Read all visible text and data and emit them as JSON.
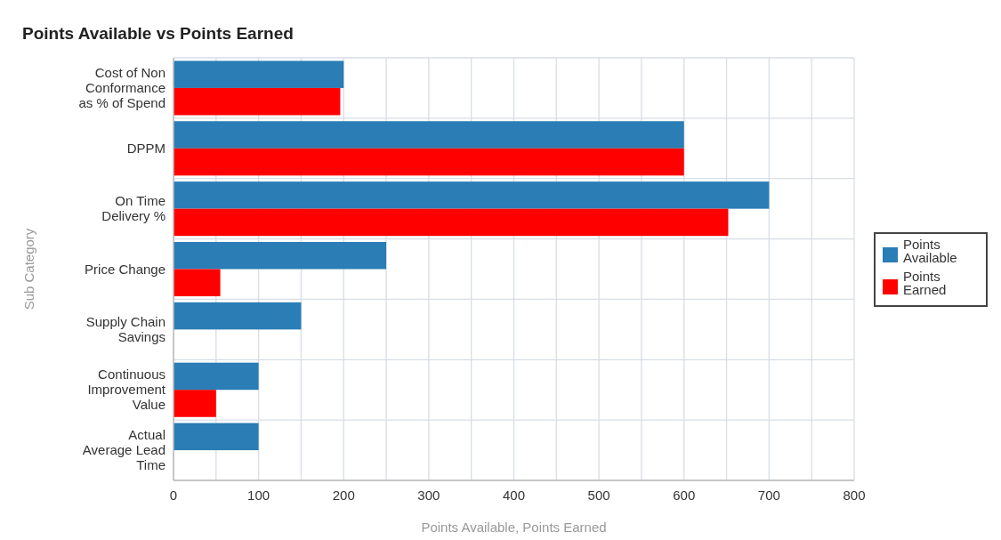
{
  "chart_data": {
    "type": "bar",
    "orientation": "horizontal",
    "title": "Points Available vs Points Earned",
    "xlabel": "Points Available, Points Earned",
    "ylabel": "Sub Category",
    "categories": [
      "Cost of Non\nConformance\nas % of Spend",
      "DPPM",
      "On Time\nDelivery %",
      "Price Change",
      "Supply Chain\nSavings",
      "Continuous\nImprovement\nValue",
      "Actual\nAverage Lead\nTime"
    ],
    "series": [
      {
        "name": "Points\nAvailable",
        "color": "#2a7db5",
        "values": [
          200,
          600,
          700,
          250,
          150,
          100,
          100
        ]
      },
      {
        "name": "Points\nEarned",
        "color": "#ff0000",
        "values": [
          196,
          600,
          652,
          55,
          null,
          50,
          null
        ]
      }
    ],
    "xlim": [
      0,
      800
    ],
    "xticks": [
      0,
      {
        "value": 50,
        "label": null
      },
      100,
      {
        "value": 150,
        "label": null
      },
      200,
      {
        "value": 250,
        "label": null
      },
      300,
      {
        "value": 350,
        "label": null
      },
      400,
      {
        "value": 450,
        "label": null
      },
      500,
      {
        "value": 550,
        "label": null
      },
      600,
      {
        "value": 650,
        "label": null
      },
      700,
      {
        "value": 750,
        "label": null
      },
      800
    ],
    "grid": true,
    "legend": "right"
  }
}
